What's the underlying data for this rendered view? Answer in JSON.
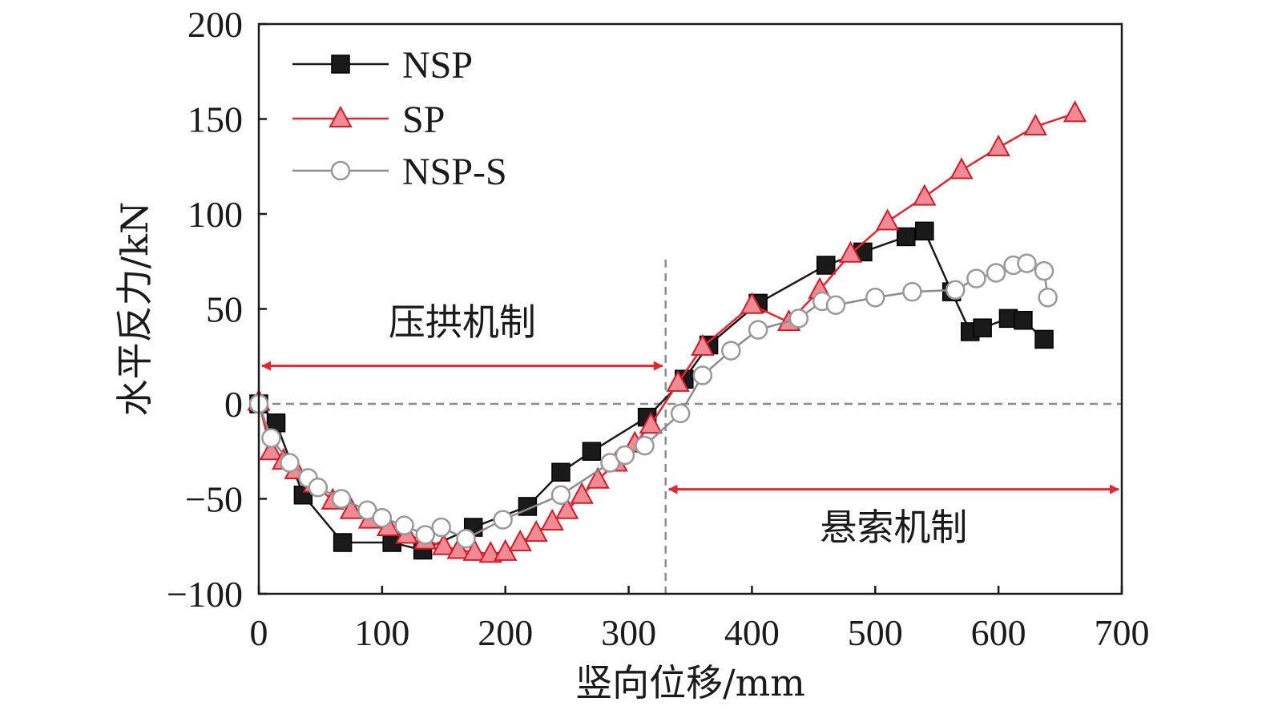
{
  "chart_data": {
    "type": "line",
    "title": "",
    "xlabel": "竖向位移/mm",
    "ylabel": "水平反力/kN",
    "xlim": [
      0,
      700
    ],
    "ylim": [
      -100,
      200
    ],
    "xticks": [
      0,
      100,
      200,
      300,
      400,
      500,
      600,
      700
    ],
    "yticks": [
      -100,
      -50,
      0,
      50,
      100,
      150,
      200
    ],
    "xtick_labels": [
      "0",
      "100",
      "200",
      "300",
      "400",
      "500",
      "600",
      "700"
    ],
    "ytick_labels": [
      "−100",
      "−50",
      "0",
      "50",
      "100",
      "150",
      "200"
    ],
    "grid": false,
    "legend_position": "top-left",
    "zero_line": true,
    "divider_x": 330,
    "annotations": [
      {
        "text": "压拱机制",
        "x_from": 0,
        "x_to": 330,
        "arrow_y": 20,
        "text_x": 165,
        "text_y": 43
      },
      {
        "text": "悬索机制",
        "x_from": 330,
        "x_to": 700,
        "arrow_y": -45,
        "text_x": 515,
        "text_y": -65
      }
    ],
    "series": [
      {
        "name": "NSP",
        "color": "#1a1a1a",
        "line_color": "#1a1a1a",
        "marker": "square",
        "x": [
          0,
          14,
          36,
          68,
          108,
          133,
          174,
          218,
          245,
          270,
          315,
          345,
          365,
          405,
          460,
          490,
          525,
          540,
          562,
          577,
          587,
          608,
          620,
          637
        ],
        "y": [
          0,
          -10,
          -48,
          -73,
          -73,
          -77,
          -65,
          -54,
          -36,
          -25,
          -7,
          13,
          31,
          53,
          73,
          80,
          88,
          91,
          59,
          38,
          40,
          45,
          44,
          34
        ]
      },
      {
        "name": "SP",
        "color": "#f08a94",
        "line_color": "#e8242f",
        "marker": "triangle",
        "x": [
          0,
          10,
          20,
          30,
          45,
          60,
          75,
          90,
          105,
          120,
          135,
          150,
          162,
          175,
          188,
          200,
          212,
          225,
          238,
          250,
          262,
          275,
          290,
          305,
          318,
          340,
          360,
          400,
          430,
          455,
          480,
          510,
          540,
          570,
          600,
          630,
          662
        ],
        "y": [
          1,
          -25,
          -30,
          -35,
          -42,
          -51,
          -56,
          -61,
          -65,
          -69,
          -72,
          -75,
          -77,
          -78,
          -79,
          -78,
          -73,
          -68,
          -62,
          -56,
          -48,
          -40,
          -31,
          -21,
          -11,
          11,
          30,
          52,
          43,
          60,
          79,
          96,
          109,
          123,
          135,
          146,
          153
        ]
      },
      {
        "name": "NSP-S",
        "color": "#999999",
        "line_color": "#8c8c8c",
        "marker": "circle",
        "x": [
          0,
          10,
          25,
          40,
          48,
          67,
          88,
          100,
          118,
          135,
          148,
          168,
          198,
          245,
          285,
          297,
          313,
          342,
          360,
          383,
          405,
          438,
          457,
          468,
          500,
          530,
          565,
          582,
          598,
          612,
          623,
          637,
          640
        ],
        "y": [
          0,
          -18,
          -31,
          -39,
          -44,
          -50,
          -56,
          -60,
          -64,
          -69,
          -65,
          -71,
          -61,
          -48,
          -31,
          -27,
          -22,
          -5,
          15,
          28,
          39,
          45,
          54,
          52,
          56,
          59,
          60,
          66,
          69,
          73,
          74,
          70,
          56
        ]
      }
    ]
  }
}
